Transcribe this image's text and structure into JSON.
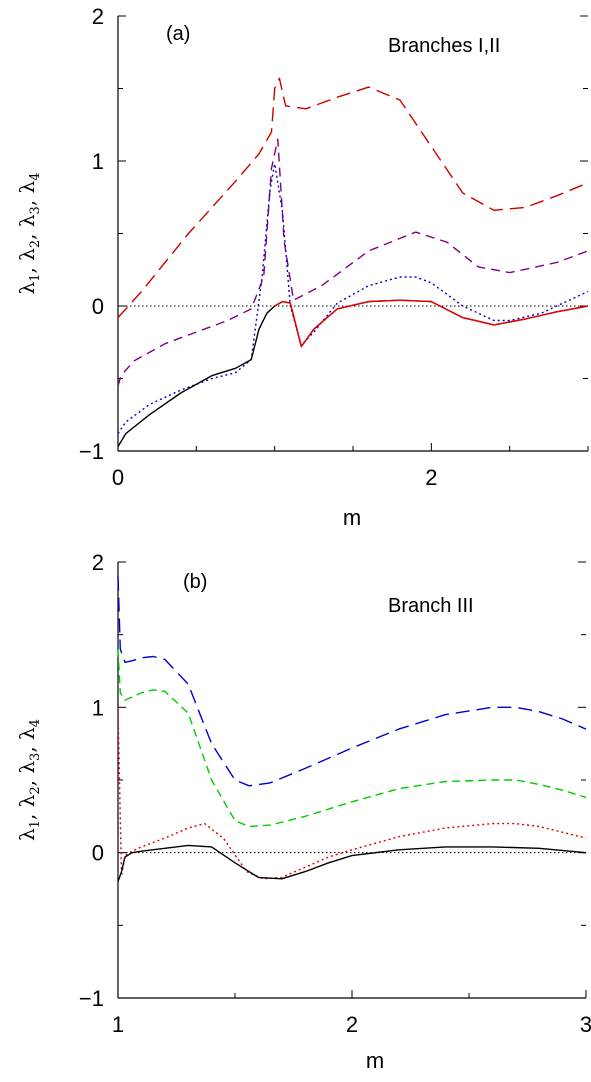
{
  "chart_data": [
    {
      "type": "line",
      "panel_label": "(a)",
      "annotation": "Branches I,II",
      "xlabel": "m",
      "ylabel_parts": [
        {
          "sym": "λ",
          "sub": "1"
        },
        {
          "sym": "λ",
          "sub": "2"
        },
        {
          "sym": "λ",
          "sub": "3"
        },
        {
          "sym": "λ",
          "sub": "4"
        }
      ],
      "xlim": [
        0,
        3
      ],
      "ylim": [
        -1,
        2
      ],
      "xticks": [
        0,
        2
      ],
      "xtick_labels": [
        "0",
        "2"
      ],
      "yticks": [
        -1,
        0,
        1,
        2
      ],
      "ytick_labels": [
        "−1",
        "0",
        "1",
        "2"
      ],
      "zero_line": true,
      "series": [
        {
          "color": "#cc0000",
          "dash": "14,7",
          "x": [
            0,
            0.15,
            0.3,
            0.45,
            0.6,
            0.75,
            0.9,
            0.98,
            1.0,
            1.03,
            1.07,
            1.2,
            1.4,
            1.6,
            1.8,
            2.0,
            2.2,
            2.4,
            2.6,
            2.8,
            3.0
          ],
          "y": [
            -0.08,
            0.1,
            0.3,
            0.5,
            0.68,
            0.86,
            1.05,
            1.2,
            1.5,
            1.57,
            1.38,
            1.36,
            1.44,
            1.51,
            1.42,
            1.1,
            0.78,
            0.66,
            0.68,
            0.76,
            0.85
          ]
        },
        {
          "color": "#800080",
          "dash": "9,6",
          "x": [
            0,
            0.02,
            0.1,
            0.3,
            0.5,
            0.7,
            0.85,
            0.93,
            0.98,
            1.02,
            1.06,
            1.12,
            1.3,
            1.6,
            1.9,
            2.1,
            2.3,
            2.5,
            2.8,
            3.0
          ],
          "y": [
            -0.55,
            -0.48,
            -0.38,
            -0.26,
            -0.18,
            -0.1,
            -0.02,
            0.2,
            0.95,
            1.15,
            0.45,
            0.04,
            0.14,
            0.38,
            0.51,
            0.44,
            0.27,
            0.23,
            0.3,
            0.38
          ]
        },
        {
          "color": "#0000cc",
          "dash": "2,3",
          "x": [
            0,
            0.05,
            0.2,
            0.4,
            0.6,
            0.75,
            0.85,
            0.92,
            0.97,
            1.0,
            1.05,
            1.1,
            1.17,
            1.25,
            1.4,
            1.6,
            1.8,
            1.9,
            2.0,
            2.2,
            2.4,
            2.5,
            2.7,
            2.9,
            3.0
          ],
          "y": [
            -0.88,
            -0.8,
            -0.68,
            -0.58,
            -0.5,
            -0.46,
            -0.37,
            0.2,
            0.8,
            0.98,
            0.65,
            0.0,
            -0.27,
            -0.18,
            0.02,
            0.14,
            0.2,
            0.2,
            0.16,
            0.0,
            -0.1,
            -0.1,
            -0.05,
            0.05,
            0.1
          ]
        },
        {
          "color": "#000000",
          "dash": "",
          "x": [
            0,
            0.05,
            0.2,
            0.4,
            0.6,
            0.75,
            0.85,
            0.9,
            0.95,
            1.0,
            1.05,
            1.1,
            1.17,
            1.25,
            1.4,
            1.6,
            1.8,
            2.0,
            2.2,
            2.4,
            2.6,
            2.8,
            3.0
          ],
          "y": [
            -0.97,
            -0.88,
            -0.75,
            -0.6,
            -0.48,
            -0.43,
            -0.37,
            -0.16,
            -0.05,
            0.0,
            0.03,
            0.02,
            -0.28,
            -0.16,
            -0.02,
            0.03,
            0.04,
            0.03,
            -0.08,
            -0.13,
            -0.09,
            -0.04,
            0.0
          ]
        },
        {
          "color": "#ee0000",
          "dash": "",
          "x": [
            1.0,
            1.05,
            1.1,
            1.17,
            1.25,
            1.4,
            1.6,
            1.8,
            2.0,
            2.2,
            2.4,
            2.6,
            2.8,
            3.0
          ],
          "y": [
            0.0,
            0.03,
            0.02,
            -0.28,
            -0.16,
            -0.02,
            0.03,
            0.04,
            0.03,
            -0.08,
            -0.13,
            -0.09,
            -0.04,
            0.0
          ]
        }
      ]
    },
    {
      "type": "line",
      "panel_label": "(b)",
      "annotation": "Branch III",
      "xlabel": "m",
      "ylabel_parts": [
        {
          "sym": "λ",
          "sub": "1"
        },
        {
          "sym": "λ",
          "sub": "2"
        },
        {
          "sym": "λ",
          "sub": "3"
        },
        {
          "sym": "λ",
          "sub": "4"
        }
      ],
      "xlim": [
        1,
        3
      ],
      "ylim": [
        -1,
        2
      ],
      "xticks": [
        1,
        2,
        3
      ],
      "xtick_labels": [
        "1",
        "2",
        "3"
      ],
      "yticks": [
        -1,
        0,
        1,
        2
      ],
      "ytick_labels": [
        "−1",
        "0",
        "1",
        "2"
      ],
      "zero_line": true,
      "series": [
        {
          "color": "#0000cc",
          "dash": "14,7",
          "x": [
            1.0,
            1.01,
            1.03,
            1.06,
            1.1,
            1.15,
            1.2,
            1.3,
            1.4,
            1.5,
            1.56,
            1.65,
            1.8,
            2.0,
            2.2,
            2.4,
            2.6,
            2.7,
            2.8,
            2.9,
            3.0
          ],
          "y": [
            1.9,
            1.4,
            1.31,
            1.32,
            1.34,
            1.35,
            1.33,
            1.16,
            0.75,
            0.5,
            0.46,
            0.48,
            0.58,
            0.72,
            0.85,
            0.95,
            1.0,
            1.0,
            0.97,
            0.92,
            0.85
          ]
        },
        {
          "color": "#00cc00",
          "dash": "8,5",
          "x": [
            1.0,
            1.01,
            1.03,
            1.06,
            1.1,
            1.15,
            1.2,
            1.3,
            1.4,
            1.5,
            1.56,
            1.65,
            1.8,
            2.0,
            2.2,
            2.4,
            2.6,
            2.7,
            2.8,
            2.9,
            3.0
          ],
          "y": [
            1.4,
            1.1,
            1.05,
            1.07,
            1.1,
            1.12,
            1.11,
            0.96,
            0.5,
            0.22,
            0.18,
            0.19,
            0.25,
            0.35,
            0.44,
            0.49,
            0.5,
            0.5,
            0.47,
            0.43,
            0.38
          ]
        },
        {
          "color": "#dd0000",
          "dash": "2,3",
          "x": [
            1.0,
            1.015,
            1.03,
            1.06,
            1.1,
            1.2,
            1.3,
            1.37,
            1.45,
            1.55,
            1.62,
            1.7,
            1.8,
            1.9,
            2.0,
            2.2,
            2.4,
            2.6,
            2.7,
            2.8,
            2.9,
            3.0
          ],
          "y": [
            1.0,
            -0.16,
            -0.02,
            0.01,
            0.04,
            0.1,
            0.17,
            0.2,
            0.1,
            -0.13,
            -0.18,
            -0.17,
            -0.1,
            -0.03,
            0.02,
            0.11,
            0.17,
            0.2,
            0.2,
            0.18,
            0.14,
            0.1
          ]
        },
        {
          "color": "#000000",
          "dash": "",
          "x": [
            1.0,
            1.015,
            1.03,
            1.06,
            1.1,
            1.2,
            1.3,
            1.4,
            1.5,
            1.6,
            1.7,
            1.8,
            1.9,
            2.0,
            2.2,
            2.4,
            2.6,
            2.8,
            3.0
          ],
          "y": [
            -0.2,
            -0.13,
            -0.03,
            0.0,
            0.01,
            0.03,
            0.05,
            0.04,
            -0.07,
            -0.17,
            -0.18,
            -0.13,
            -0.07,
            -0.02,
            0.02,
            0.04,
            0.04,
            0.03,
            0.0
          ]
        }
      ]
    }
  ]
}
